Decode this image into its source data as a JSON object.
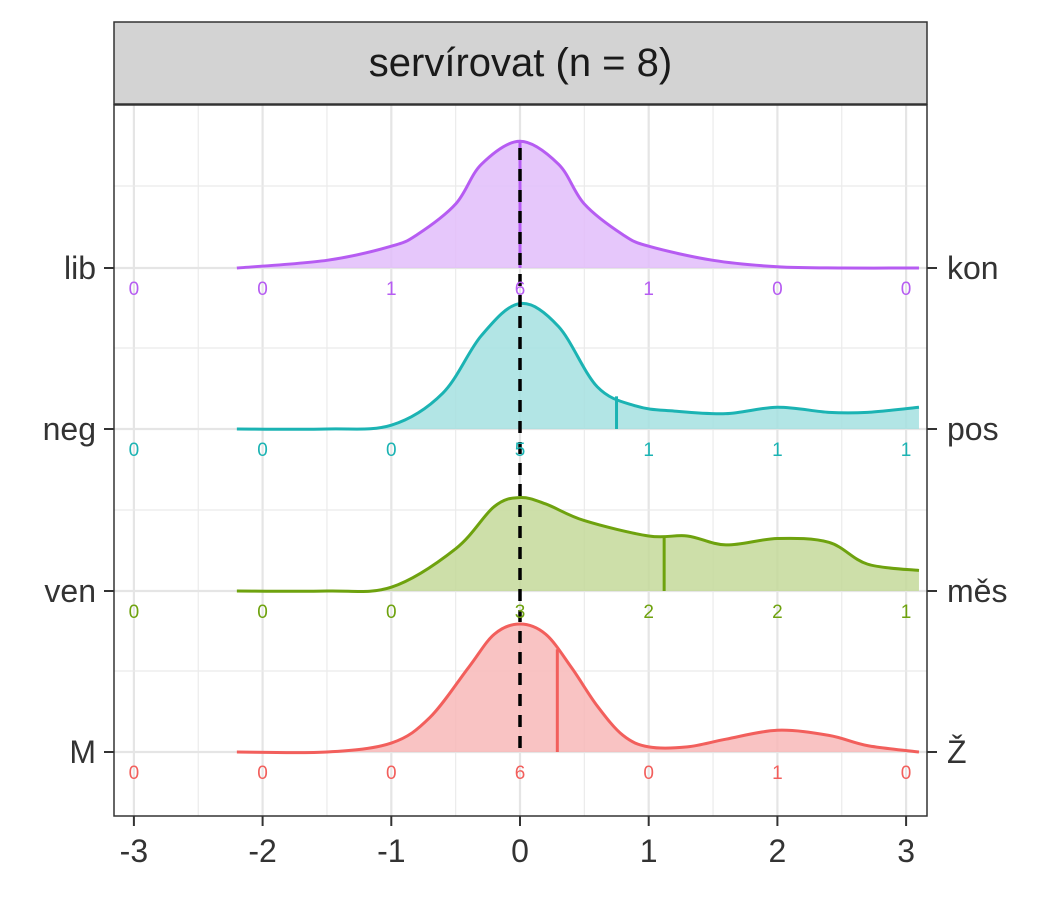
{
  "chart_data": {
    "type": "area",
    "title": "servírovat (n = 8)",
    "xlabel": "",
    "ylabel": "",
    "xlim": [
      -3.15,
      3.15
    ],
    "x_ticks": [
      "-3",
      "-2",
      "-1",
      "0",
      "1",
      "2",
      "3"
    ],
    "x_tick_values": [
      -3,
      -2,
      -1,
      0,
      1,
      2,
      3
    ],
    "count_positions": [
      -3,
      -2,
      -1,
      0,
      1,
      2,
      3
    ],
    "reference_line_x": 0,
    "grid": true,
    "legend": "none",
    "series": [
      {
        "left_label": "M",
        "right_label": "Ž",
        "color": "#F25F5C",
        "fill": "#F8B9B8",
        "mean": 0.29,
        "counts": [
          "0",
          "0",
          "0",
          "6",
          "0",
          "1",
          "0"
        ],
        "density_x": [
          -2.2,
          -1.5,
          -1.0,
          -0.7,
          -0.4,
          -0.2,
          0.0,
          0.2,
          0.4,
          0.6,
          0.8,
          1.0,
          1.3,
          1.6,
          2.0,
          2.4,
          2.7,
          3.1
        ],
        "density_y": [
          0.0,
          0.0,
          0.07,
          0.27,
          0.66,
          0.92,
          1.0,
          0.92,
          0.66,
          0.36,
          0.13,
          0.04,
          0.04,
          0.1,
          0.17,
          0.13,
          0.05,
          0.0
        ]
      },
      {
        "left_label": "ven",
        "right_label": "měs",
        "color": "#6EA20E",
        "fill": "#C4D99A",
        "mean": 1.12,
        "counts": [
          "0",
          "0",
          "0",
          "3",
          "2",
          "2",
          "1"
        ],
        "density_x": [
          -2.2,
          -1.5,
          -1.0,
          -0.5,
          -0.2,
          0.0,
          0.2,
          0.5,
          1.0,
          1.3,
          1.6,
          2.0,
          2.4,
          2.7,
          3.1
        ],
        "density_y": [
          0.0,
          0.0,
          0.03,
          0.33,
          0.66,
          0.73,
          0.68,
          0.55,
          0.43,
          0.43,
          0.36,
          0.41,
          0.38,
          0.21,
          0.16
        ]
      },
      {
        "left_label": "neg",
        "right_label": "pos",
        "color": "#1BB3B3",
        "fill": "#A5E0E0",
        "mean": 0.75,
        "counts": [
          "0",
          "0",
          "0",
          "5",
          "1",
          "1",
          "1"
        ],
        "density_x": [
          -2.2,
          -1.5,
          -1.0,
          -0.6,
          -0.3,
          0.0,
          0.3,
          0.6,
          0.9,
          1.2,
          1.6,
          2.0,
          2.4,
          2.7,
          3.1
        ],
        "density_y": [
          0.0,
          0.0,
          0.03,
          0.28,
          0.73,
          0.98,
          0.8,
          0.33,
          0.18,
          0.14,
          0.12,
          0.17,
          0.13,
          0.13,
          0.17
        ]
      },
      {
        "left_label": "lib",
        "right_label": "kon",
        "color": "#B65CF2",
        "fill": "#E2BDFA",
        "mean": 0.0,
        "counts": [
          "0",
          "0",
          "1",
          "6",
          "1",
          "0",
          "0"
        ],
        "density_x": [
          -2.2,
          -1.5,
          -1.0,
          -0.8,
          -0.5,
          -0.3,
          0.0,
          0.3,
          0.5,
          0.8,
          1.0,
          1.5,
          2.0,
          2.5,
          3.1
        ],
        "density_y": [
          0.0,
          0.06,
          0.17,
          0.26,
          0.5,
          0.81,
          0.99,
          0.81,
          0.5,
          0.26,
          0.17,
          0.06,
          0.01,
          0.0,
          0.0
        ]
      }
    ]
  }
}
